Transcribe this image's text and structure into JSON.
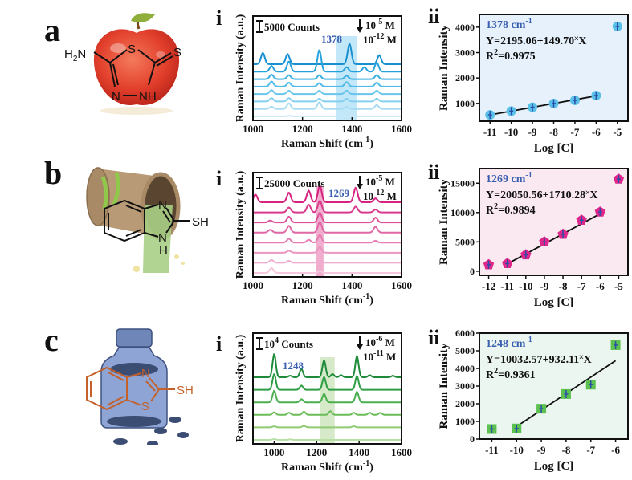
{
  "panels": [
    {
      "letter": "a",
      "illustration": "apple-icon",
      "molecule": {
        "name": "2-amino-5-mercapto-1,3,4-thiadiazole",
        "labels": {
          "nh2": "H",
          "nh2sub": "2",
          "nh2n": "N",
          "s1": "S",
          "s2": "S",
          "n": "N",
          "nh": "NH"
        }
      },
      "spectra_label": "i",
      "fit_label": "ii"
    },
    {
      "letter": "b",
      "illustration": "sewer-pipe-icon",
      "molecule": {
        "name": "2-mercaptobenzimidazole",
        "labels": {
          "n": "N",
          "nh": "N",
          "h": "H",
          "sh": "SH"
        }
      },
      "spectra_label": "i",
      "fit_label": "ii"
    },
    {
      "letter": "c",
      "illustration": "pill-bottle-icon",
      "molecule": {
        "name": "2-mercaptobenzothiazole",
        "labels": {
          "n": "N",
          "s": "S",
          "sh": "SH"
        }
      },
      "spectra_label": "i",
      "fit_label": "ii"
    }
  ],
  "chart_data": [
    {
      "id": "a-i",
      "type": "line",
      "title": "",
      "xlabel": "Raman Shift (cm-1)",
      "xlabel_main": "Raman Shift (cm",
      "xlabel_sup": "-1",
      "xlabel_end": ")",
      "ylabel": "Raman Intensity (a.u.)",
      "xlim": [
        1000,
        1600
      ],
      "xticks": [
        1000,
        1200,
        1400,
        1600
      ],
      "scale_bar": "5000 Counts",
      "conc_high": {
        "base": "10",
        "exp": "-5",
        "unit": " M"
      },
      "conc_low": {
        "base": "10",
        "exp": "-12",
        "unit": " M"
      },
      "highlight_peak": "1378",
      "highlight_range": [
        1335,
        1420
      ],
      "highlight_color": "#8fd3f4",
      "colors": [
        "#1a8fd0",
        "#27a1dc",
        "#3cafe2",
        "#52bbe7",
        "#6ac5ea",
        "#84d0ee",
        "#a6dcf2",
        "#c7e9f6"
      ],
      "series": [
        {
          "name": "1e-5 M",
          "peaks": [
            [
              1040,
              1.0
            ],
            [
              1140,
              0.9
            ],
            [
              1390,
              1.8
            ],
            [
              1510,
              0.8
            ]
          ]
        },
        {
          "name": "1e-6 M",
          "peaks": [
            [
              1075,
              0.5
            ],
            [
              1145,
              0.9
            ],
            [
              1268,
              1.9
            ],
            [
              1378,
              0.4
            ],
            [
              1450,
              0.4
            ],
            [
              1500,
              0.8
            ]
          ]
        },
        {
          "name": "1e-7 M",
          "peaks": [
            [
              1075,
              0.4
            ],
            [
              1145,
              0.35
            ],
            [
              1268,
              0.35
            ],
            [
              1378,
              0.3
            ],
            [
              1500,
              0.35
            ]
          ]
        },
        {
          "name": "1e-8 M",
          "peaks": [
            [
              1075,
              0.45
            ],
            [
              1145,
              0.35
            ],
            [
              1268,
              0.3
            ],
            [
              1378,
              0.4
            ],
            [
              1500,
              0.35
            ]
          ]
        },
        {
          "name": "1e-9 M",
          "peaks": [
            [
              1075,
              0.35
            ],
            [
              1145,
              0.3
            ],
            [
              1268,
              0.3
            ],
            [
              1378,
              0.3
            ],
            [
              1500,
              0.3
            ]
          ]
        },
        {
          "name": "1e-10 M",
          "peaks": [
            [
              1075,
              0.3
            ],
            [
              1145,
              0.3
            ],
            [
              1268,
              0.25
            ],
            [
              1378,
              0.25
            ],
            [
              1500,
              0.25
            ]
          ]
        },
        {
          "name": "1e-11 M",
          "peaks": [
            [
              1075,
              0.2
            ],
            [
              1145,
              0.5
            ],
            [
              1268,
              0.6
            ],
            [
              1378,
              0.2
            ],
            [
              1500,
              0.35
            ]
          ]
        },
        {
          "name": "1e-12 M",
          "peaks": [
            [
              1145,
              0.05
            ]
          ]
        }
      ]
    },
    {
      "id": "a-ii",
      "type": "scatter",
      "xlabel": "Log [C]",
      "ylabel": "Raman Intensity",
      "xlim": [
        -11.5,
        -4.5
      ],
      "ylim": [
        300,
        4500
      ],
      "xticks": [
        -11,
        -10,
        -9,
        -8,
        -7,
        -6,
        -5
      ],
      "yticks": [
        1000,
        2000,
        3000,
        4000
      ],
      "peak_label": "1378 cm",
      "peak_sup": "-1",
      "equation": "Y=2195.06+149.70*X",
      "r2_label": "R",
      "r2_sup": "2",
      "r2_value": "=0.9975",
      "bg": "#e6f1fb",
      "marker_color": "#5bc0e8",
      "marker_shape": "circle",
      "x": [
        -11,
        -10,
        -9,
        -8,
        -7,
        -6,
        -5
      ],
      "y": [
        550,
        700,
        850,
        1000,
        1120,
        1310,
        4030
      ],
      "fit": {
        "x": [
          -11,
          -6
        ],
        "intercept": 2195.06,
        "slope": 149.7
      }
    },
    {
      "id": "b-i",
      "type": "line",
      "xlabel": "Raman Shift (cm-1)",
      "xlabel_main": "Raman Shift (cm",
      "xlabel_sup": "-1",
      "xlabel_end": ")",
      "ylabel": "Raman Intensity (a.u.)",
      "xlim": [
        1000,
        1600
      ],
      "xticks": [
        1000,
        1200,
        1400,
        1600
      ],
      "scale_bar": "25000 Counts",
      "conc_high": {
        "base": "10",
        "exp": "-5",
        "unit": " M"
      },
      "conc_low": {
        "base": "10",
        "exp": "-12",
        "unit": " M"
      },
      "highlight_peak": "1269",
      "highlight_range": [
        1255,
        1285
      ],
      "highlight_color": "#e46aa6",
      "colors": [
        "#d6237f",
        "#d93a8c",
        "#dc5299",
        "#e067a6",
        "#e67db3",
        "#eb95c1",
        "#f0adcf",
        "#f5c8de"
      ],
      "series": [
        {
          "name": "1e-5 M",
          "peaks": [
            [
              1010,
              0.8
            ],
            [
              1145,
              1.0
            ],
            [
              1225,
              1.2
            ],
            [
              1270,
              1.7
            ],
            [
              1415,
              1.5
            ],
            [
              1495,
              0.4
            ]
          ]
        },
        {
          "name": "1e-6 M",
          "peaks": [
            [
              1145,
              0.5
            ],
            [
              1225,
              0.8
            ],
            [
              1270,
              1.2
            ],
            [
              1415,
              0.6
            ],
            [
              1495,
              0.3
            ]
          ]
        },
        {
          "name": "1e-7 M",
          "peaks": [
            [
              1070,
              0.2
            ],
            [
              1145,
              0.6
            ],
            [
              1270,
              1.0
            ],
            [
              1495,
              0.5
            ]
          ]
        },
        {
          "name": "1e-8 M",
          "peaks": [
            [
              1070,
              0.3
            ],
            [
              1145,
              0.7
            ],
            [
              1270,
              1.1
            ],
            [
              1495,
              0.6
            ]
          ]
        },
        {
          "name": "1e-9 M",
          "peaks": [
            [
              1145,
              0.4
            ],
            [
              1225,
              0.3
            ],
            [
              1270,
              0.8
            ],
            [
              1495,
              0.2
            ]
          ]
        },
        {
          "name": "1e-10 M",
          "peaks": [
            [
              1145,
              0.2
            ],
            [
              1270,
              0.6
            ]
          ]
        },
        {
          "name": "1e-11 M",
          "peaks": [
            [
              1075,
              0.3
            ],
            [
              1145,
              0.2
            ],
            [
              1270,
              0.5
            ]
          ]
        },
        {
          "name": "1e-12 M",
          "peaks": [
            [
              1075,
              0.5
            ],
            [
              1270,
              0.2
            ]
          ]
        }
      ]
    },
    {
      "id": "b-ii",
      "type": "scatter",
      "xlabel": "Log [C]",
      "ylabel": "Raman Intensity",
      "xlim": [
        -12.5,
        -4.5
      ],
      "ylim": [
        -700,
        17500
      ],
      "xticks": [
        -12,
        -11,
        -10,
        -9,
        -8,
        -7,
        -6,
        -5
      ],
      "yticks": [
        0,
        5000,
        10000,
        15000
      ],
      "peak_label": "1269 cm",
      "peak_sup": "-1",
      "equation": "Y=20050.56+1710.28*X",
      "r2_label": "R",
      "r2_sup": "2",
      "r2_value": "=0.9894",
      "bg": "#fbe9f1",
      "marker_color": "#e0268a",
      "marker_shape": "pentagon",
      "x": [
        -12,
        -11,
        -10,
        -9,
        -8,
        -7,
        -6,
        -5
      ],
      "y": [
        1100,
        1300,
        2800,
        5000,
        6300,
        8700,
        10100,
        15700
      ],
      "fit": {
        "x": [
          -11,
          -6
        ],
        "intercept": 20050.56,
        "slope": 1710.28
      }
    },
    {
      "id": "c-i",
      "type": "line",
      "xlabel": "Raman Shift (cm-1)",
      "xlabel_main": "Raman Shift (cm",
      "xlabel_sup": "-1",
      "xlabel_end": ")",
      "ylabel": "Raman Intensity (a.u.)",
      "xlim": [
        900,
        1600
      ],
      "xticks": [
        1000,
        1200,
        1400,
        1600
      ],
      "scale_bar_base": "10",
      "scale_bar_exp": "4",
      "scale_bar": " Counts",
      "conc_high": {
        "base": "10",
        "exp": "-6",
        "unit": " M"
      },
      "conc_low": {
        "base": "10",
        "exp": "-11",
        "unit": " M"
      },
      "highlight_peak": "1248",
      "highlight_range": [
        1215,
        1285
      ],
      "highlight_color": "#b5d99c",
      "colors": [
        "#1e8a3a",
        "#2e9e45",
        "#4aaf4e",
        "#6abc57",
        "#8fcb73",
        "#b8dfa5"
      ],
      "series": [
        {
          "name": "1e-6 M",
          "peaks": [
            [
              1000,
              2.2
            ],
            [
              1075,
              0.15
            ],
            [
              1128,
              0.8
            ],
            [
              1235,
              1.6
            ],
            [
              1275,
              0.3
            ],
            [
              1315,
              0.2
            ],
            [
              1390,
              2.0
            ],
            [
              1450,
              0.2
            ],
            [
              1560,
              0.15
            ]
          ]
        },
        {
          "name": "1e-7 M",
          "peaks": [
            [
              1000,
              1.5
            ],
            [
              1128,
              0.4
            ],
            [
              1235,
              1.2
            ],
            [
              1390,
              1.3
            ]
          ]
        },
        {
          "name": "1e-8 M",
          "peaks": [
            [
              1000,
              1.1
            ],
            [
              1128,
              0.3
            ],
            [
              1235,
              0.8
            ],
            [
              1390,
              1.0
            ]
          ]
        },
        {
          "name": "1e-9 M",
          "peaks": [
            [
              1000,
              0.25
            ],
            [
              1070,
              0.2
            ],
            [
              1140,
              0.3
            ],
            [
              1265,
              0.35
            ],
            [
              1375,
              0.2
            ],
            [
              1450,
              0.2
            ],
            [
              1500,
              0.2
            ]
          ]
        },
        {
          "name": "1e-10 M",
          "peaks": [
            [
              1000,
              0.1
            ],
            [
              1140,
              0.15
            ],
            [
              1375,
              0.1
            ]
          ]
        },
        {
          "name": "1e-11 M",
          "peaks": [
            [
              1000,
              0.08
            ],
            [
              1075,
              0.05
            ]
          ]
        }
      ]
    },
    {
      "id": "c-ii",
      "type": "scatter",
      "xlabel": "Log [C]",
      "ylabel": "Raman Intensity",
      "xlim": [
        -11.5,
        -5.5
      ],
      "ylim": [
        0,
        6000
      ],
      "xticks": [
        -11,
        -10,
        -9,
        -8,
        -7,
        -6
      ],
      "yticks": [
        0,
        1000,
        2000,
        3000,
        4000,
        5000,
        6000
      ],
      "peak_label": "1248 cm",
      "peak_sup": "-1",
      "equation": "Y=10032.57+932.11*X",
      "r2_label": "R",
      "r2_sup": "2",
      "r2_value": "=0.9361",
      "bg": "#eaf6ef",
      "marker_color": "#5cc14e",
      "marker_shape": "square",
      "x": [
        -11,
        -10,
        -9,
        -8,
        -7,
        -6
      ],
      "y": [
        570,
        600,
        1720,
        2550,
        3080,
        5320
      ],
      "fit": {
        "x": [
          -10,
          -6
        ],
        "intercept": 10032.57,
        "slope": 932.11
      }
    }
  ]
}
